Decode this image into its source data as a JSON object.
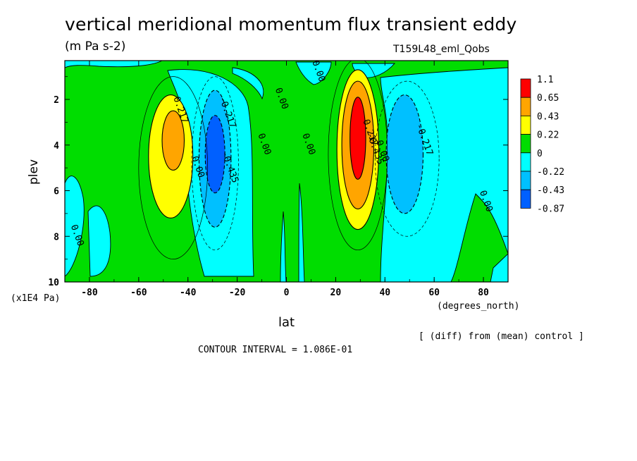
{
  "header": {
    "title": "vertical meridional momentum flux transient eddy",
    "units": "(m Pa s-2)",
    "run": "T159L48_eml_Qobs"
  },
  "footer": {
    "diff_note": "[ (diff) from (mean) control ]",
    "contour_interval": "CONTOUR INTERVAL = 1.086E-01"
  },
  "chart_data": {
    "type": "heatmap",
    "xlabel": "lat",
    "x_unit": "(degrees_north)",
    "ylabel": "plev",
    "y_unit": "(x1E4 Pa)",
    "xlim": [
      -90,
      90
    ],
    "ylim": [
      10,
      0.3
    ],
    "x_ticks": [
      -80,
      -60,
      -40,
      -20,
      0,
      20,
      40,
      60,
      80
    ],
    "y_ticks": [
      2,
      4,
      6,
      8,
      10
    ],
    "colorbar": {
      "levels": [
        "1.1",
        "0.65",
        "0.43",
        "0.22",
        "0",
        "-0.22",
        "-0.43",
        "-0.87"
      ],
      "colors": [
        "#ff0000",
        "#ffa500",
        "#ffff00",
        "#00dd00",
        "#00ffff",
        "#00c0ff",
        "#0060ff"
      ],
      "level_background": "#00dd00"
    },
    "extrema": [
      {
        "lat": -46,
        "plev": 3.8,
        "value": 0.3,
        "sign": "positive"
      },
      {
        "lat": -28,
        "plev": 4.5,
        "value": -0.5,
        "sign": "negative"
      },
      {
        "lat": 29,
        "plev": 3.8,
        "value": 0.9,
        "sign": "positive"
      },
      {
        "lat": 48,
        "plev": 4.2,
        "value": -0.35,
        "sign": "negative"
      }
    ],
    "contour_labels": [
      {
        "text": "0.217",
        "lat": -44,
        "plev": 2.5
      },
      {
        "text": "-0.217",
        "lat": -25,
        "plev": 2.6
      },
      {
        "text": "-0.435",
        "lat": -24,
        "plev": 5.0
      },
      {
        "text": "0.00",
        "lat": -37,
        "plev": 5.0
      },
      {
        "text": "0.00",
        "lat": -10,
        "plev": 4.0
      },
      {
        "text": "0.00",
        "lat": -3,
        "plev": 2.0
      },
      {
        "text": "0.00",
        "lat": 8,
        "plev": 4.0
      },
      {
        "text": "0.00",
        "lat": 12,
        "plev": 0.8
      },
      {
        "text": "0.217",
        "lat": 33,
        "plev": 3.5
      },
      {
        "text": "-0.435",
        "lat": 35,
        "plev": 4.2
      },
      {
        "text": "0.00",
        "lat": 38,
        "plev": 4.3
      },
      {
        "text": "-0.217",
        "lat": 55,
        "plev": 3.8
      },
      {
        "text": "0.00",
        "lat": 80,
        "plev": 6.5
      },
      {
        "text": "0.00",
        "lat": -86,
        "plev": 8.0
      }
    ]
  }
}
